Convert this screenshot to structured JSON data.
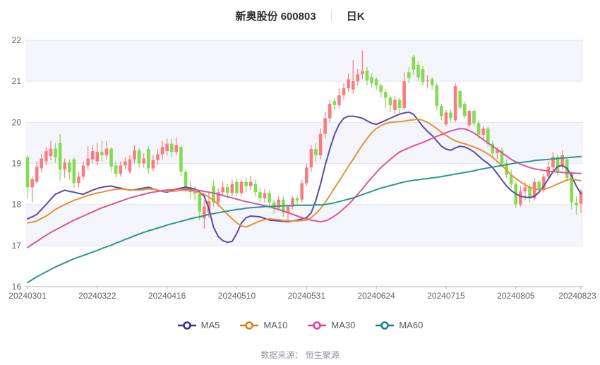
{
  "header": {
    "title": "新奥股份 600803",
    "separator": "｜",
    "subtitle": "日K"
  },
  "footer": {
    "source_label": "数据来源： 恒生聚源"
  },
  "legend": [
    {
      "label": "MA5",
      "color": "#3b2b91"
    },
    {
      "label": "MA10",
      "color": "#e07a1a"
    },
    {
      "label": "MA30",
      "color": "#dd3f9e"
    },
    {
      "label": "MA60",
      "color": "#14808e"
    }
  ],
  "chart_data": {
    "type": "candlestick",
    "title": "新奥股份 600803 日K",
    "ylim": [
      16,
      22
    ],
    "y_ticks": [
      16,
      17,
      18,
      19,
      20,
      21,
      22
    ],
    "x_tick_labels": [
      "20240301",
      "20240322",
      "20240416",
      "20240510",
      "20240531",
      "20240624",
      "20240715",
      "20240805",
      "20240823"
    ],
    "x_tick_indices": [
      0,
      15,
      30,
      45,
      60,
      75,
      90,
      105,
      119
    ],
    "grid": true,
    "legend_position": "bottom",
    "up_color": "#f87e7e",
    "down_color": "#83db52",
    "band_color": "#f3f5fa",
    "grid_color": "#e3e8f2",
    "axis_color": "#b0b0b0",
    "tick_label_color": "#666666",
    "candles_ohlc": [
      [
        19.15,
        19.2,
        18.15,
        18.42
      ],
      [
        18.42,
        18.68,
        18.05,
        18.62
      ],
      [
        18.55,
        19.06,
        18.5,
        18.92
      ],
      [
        18.88,
        19.24,
        18.8,
        19.12
      ],
      [
        19.05,
        19.4,
        18.95,
        19.3
      ],
      [
        19.18,
        19.55,
        19.08,
        19.36
      ],
      [
        19.36,
        19.5,
        19.02,
        19.15
      ],
      [
        19.5,
        19.72,
        18.58,
        18.85
      ],
      [
        18.85,
        19.12,
        18.65,
        19.02
      ],
      [
        19.02,
        19.1,
        18.6,
        18.78
      ],
      [
        19.1,
        19.15,
        18.4,
        18.52
      ],
      [
        18.52,
        18.8,
        18.42,
        18.68
      ],
      [
        18.68,
        19.05,
        18.6,
        18.95
      ],
      [
        18.95,
        19.42,
        18.85,
        19.12
      ],
      [
        19.1,
        19.45,
        19.0,
        19.3
      ],
      [
        19.05,
        19.5,
        18.95,
        19.28
      ],
      [
        19.28,
        19.55,
        19.05,
        19.2
      ],
      [
        19.2,
        19.55,
        19.1,
        19.36
      ],
      [
        19.36,
        19.4,
        18.8,
        18.92
      ],
      [
        18.95,
        19.05,
        18.65,
        18.75
      ],
      [
        18.75,
        19.05,
        18.68,
        18.95
      ],
      [
        18.95,
        19.15,
        18.85,
        19.05
      ],
      [
        18.8,
        19.2,
        18.75,
        19.1
      ],
      [
        19.1,
        19.45,
        19.0,
        19.32
      ],
      [
        19.32,
        19.38,
        18.9,
        19.0
      ],
      [
        19.0,
        19.25,
        18.9,
        19.12
      ],
      [
        19.35,
        19.42,
        18.75,
        18.88
      ],
      [
        18.88,
        19.2,
        18.8,
        19.08
      ],
      [
        19.08,
        19.35,
        18.95,
        19.22
      ],
      [
        19.22,
        19.55,
        19.1,
        19.4
      ],
      [
        19.3,
        19.6,
        19.2,
        19.48
      ],
      [
        19.48,
        19.6,
        19.15,
        19.28
      ],
      [
        19.28,
        19.62,
        19.2,
        19.45
      ],
      [
        19.4,
        19.45,
        18.7,
        18.8
      ],
      [
        18.79,
        18.85,
        18.3,
        18.42
      ],
      [
        18.42,
        18.55,
        18.15,
        18.3
      ],
      [
        18.31,
        18.45,
        18.1,
        18.26
      ],
      [
        18.26,
        18.28,
        17.62,
        17.83
      ],
      [
        17.66,
        18.1,
        17.41,
        17.95
      ],
      [
        17.8,
        18.3,
        17.68,
        18.08
      ],
      [
        18.45,
        18.6,
        17.95,
        18.05
      ],
      [
        18.05,
        18.4,
        17.95,
        18.3
      ],
      [
        18.3,
        18.55,
        18.2,
        18.42
      ],
      [
        18.42,
        18.5,
        18.15,
        18.28
      ],
      [
        18.28,
        18.6,
        18.2,
        18.5
      ],
      [
        18.55,
        18.62,
        18.2,
        18.28
      ],
      [
        18.28,
        18.6,
        18.2,
        18.55
      ],
      [
        18.55,
        18.65,
        18.3,
        18.45
      ],
      [
        18.45,
        18.7,
        18.35,
        18.55
      ],
      [
        18.5,
        18.6,
        18.2,
        18.3
      ],
      [
        18.3,
        18.4,
        18.05,
        18.15
      ],
      [
        18.15,
        18.38,
        18.05,
        18.28
      ],
      [
        18.28,
        18.35,
        17.9,
        18.05
      ],
      [
        18.05,
        18.12,
        17.78,
        17.92
      ],
      [
        17.92,
        18.2,
        17.85,
        18.12
      ],
      [
        18.12,
        18.2,
        17.7,
        17.8
      ],
      [
        17.8,
        17.98,
        17.62,
        17.95
      ],
      [
        17.95,
        18.2,
        17.88,
        18.15
      ],
      [
        18.15,
        18.22,
        18.0,
        18.1
      ],
      [
        18.12,
        18.6,
        18.05,
        18.52
      ],
      [
        18.52,
        19.0,
        18.45,
        18.9
      ],
      [
        18.9,
        19.45,
        18.8,
        19.35
      ],
      [
        19.35,
        19.5,
        19.05,
        19.2
      ],
      [
        19.2,
        19.85,
        19.1,
        19.72
      ],
      [
        19.72,
        20.25,
        19.6,
        20.1
      ],
      [
        20.1,
        20.55,
        20.0,
        20.45
      ],
      [
        20.52,
        20.6,
        20.3,
        20.42
      ],
      [
        20.42,
        20.83,
        20.35,
        20.66
      ],
      [
        20.66,
        20.95,
        20.55,
        20.83
      ],
      [
        20.83,
        21.19,
        20.75,
        21.05
      ],
      [
        20.8,
        21.52,
        20.7,
        21.0
      ],
      [
        21.0,
        21.3,
        20.9,
        21.17
      ],
      [
        21.17,
        21.75,
        21.05,
        21.25
      ],
      [
        21.26,
        21.35,
        20.9,
        21.02
      ],
      [
        21.1,
        21.2,
        20.85,
        20.95
      ],
      [
        21.05,
        21.1,
        20.8,
        20.9
      ],
      [
        20.9,
        20.95,
        20.6,
        20.74
      ],
      [
        20.74,
        20.8,
        20.35,
        20.6
      ],
      [
        20.6,
        20.65,
        20.25,
        20.42
      ],
      [
        20.3,
        20.65,
        20.2,
        20.55
      ],
      [
        20.55,
        20.6,
        20.2,
        20.35
      ],
      [
        20.35,
        21.22,
        20.3,
        21.0
      ],
      [
        21.22,
        21.35,
        20.95,
        21.08
      ],
      [
        21.6,
        21.64,
        21.15,
        21.28
      ],
      [
        21.4,
        21.5,
        21.0,
        21.1
      ],
      [
        21.3,
        21.38,
        20.9,
        20.98
      ],
      [
        21.0,
        21.15,
        20.85,
        21.02
      ],
      [
        21.05,
        21.1,
        20.8,
        20.9
      ],
      [
        20.9,
        20.95,
        20.3,
        20.4
      ],
      [
        20.4,
        20.45,
        20.05,
        20.15
      ],
      [
        19.95,
        20.3,
        19.9,
        20.24
      ],
      [
        20.24,
        20.32,
        20.0,
        20.1
      ],
      [
        20.05,
        20.95,
        20.0,
        20.88
      ],
      [
        20.76,
        20.8,
        20.3,
        20.36
      ],
      [
        20.45,
        20.5,
        20.1,
        20.16
      ],
      [
        19.93,
        20.32,
        19.88,
        20.28
      ],
      [
        20.28,
        20.32,
        19.9,
        19.98
      ],
      [
        19.98,
        20.05,
        19.6,
        19.7
      ],
      [
        19.7,
        19.92,
        19.6,
        19.85
      ],
      [
        19.85,
        19.9,
        19.4,
        19.48
      ],
      [
        19.48,
        19.55,
        19.15,
        19.25
      ],
      [
        19.25,
        19.4,
        19.1,
        19.32
      ],
      [
        19.32,
        19.38,
        18.9,
        19.0
      ],
      [
        19.0,
        19.1,
        18.65,
        18.72
      ],
      [
        18.72,
        18.85,
        18.4,
        18.5
      ],
      [
        18.5,
        18.55,
        17.91,
        18.0
      ],
      [
        18.0,
        18.45,
        17.95,
        18.32
      ],
      [
        18.32,
        18.55,
        18.1,
        18.42
      ],
      [
        18.42,
        18.5,
        18.05,
        18.15
      ],
      [
        18.15,
        18.65,
        18.1,
        18.55
      ],
      [
        18.55,
        18.6,
        18.25,
        18.35
      ],
      [
        18.35,
        18.75,
        18.3,
        18.68
      ],
      [
        18.68,
        19.05,
        18.6,
        18.92
      ],
      [
        18.9,
        19.28,
        18.8,
        19.16
      ],
      [
        19.16,
        19.22,
        18.7,
        18.81
      ],
      [
        18.95,
        19.32,
        18.85,
        19.2
      ],
      [
        19.1,
        19.15,
        18.55,
        18.65
      ],
      [
        18.76,
        18.8,
        17.88,
        18.05
      ],
      [
        18.05,
        18.2,
        17.75,
        17.98
      ],
      [
        18.02,
        18.38,
        17.8,
        18.32
      ]
    ],
    "series": [
      {
        "name": "MA5",
        "color": "#5b4aa5",
        "values": [
          17.65,
          17.7,
          17.76,
          17.88,
          18.0,
          18.13,
          18.25,
          18.3,
          18.35,
          18.32,
          18.3,
          18.27,
          18.25,
          18.3,
          18.35,
          18.39,
          18.42,
          18.44,
          18.45,
          18.42,
          18.4,
          18.37,
          18.35,
          18.36,
          18.38,
          18.4,
          18.42,
          18.38,
          18.35,
          18.32,
          18.3,
          18.34,
          18.38,
          18.4,
          18.42,
          18.4,
          18.38,
          18.3,
          18.2,
          17.9,
          17.45,
          17.22,
          17.12,
          17.08,
          17.1,
          17.3,
          17.55,
          17.68,
          17.72,
          17.71,
          17.7,
          17.66,
          17.62,
          17.61,
          17.6,
          17.59,
          17.58,
          17.6,
          17.62,
          17.65,
          17.68,
          17.8,
          18.1,
          18.5,
          18.95,
          19.35,
          19.7,
          19.95,
          20.1,
          20.15,
          20.15,
          20.13,
          20.1,
          20.04,
          19.98,
          19.95,
          20.0,
          20.05,
          20.1,
          20.15,
          20.2,
          20.23,
          20.25,
          20.2,
          20.05,
          19.9,
          19.78,
          19.68,
          19.55,
          19.42,
          19.35,
          19.32,
          19.38,
          19.42,
          19.4,
          19.35,
          19.28,
          19.18,
          19.08,
          19.0,
          18.9,
          18.75,
          18.6,
          18.45,
          18.34,
          18.26,
          18.2,
          18.18,
          18.17,
          18.2,
          18.3,
          18.45,
          18.62,
          18.8,
          18.93,
          18.95,
          18.88,
          18.7,
          18.45,
          18.26
        ]
      },
      {
        "name": "MA10",
        "color": "#e69138",
        "values": [
          17.55,
          17.57,
          17.6,
          17.66,
          17.72,
          17.8,
          17.88,
          17.94,
          18.0,
          18.05,
          18.1,
          18.14,
          18.18,
          18.22,
          18.25,
          18.28,
          18.3,
          18.33,
          18.35,
          18.37,
          18.38,
          18.37,
          18.36,
          18.35,
          18.35,
          18.36,
          18.38,
          18.37,
          18.35,
          18.33,
          18.32,
          18.32,
          18.33,
          18.34,
          18.35,
          18.34,
          18.32,
          18.29,
          18.25,
          18.18,
          18.1,
          18.0,
          17.88,
          17.76,
          17.65,
          17.55,
          17.48,
          17.45,
          17.5,
          17.55,
          17.6,
          17.63,
          17.65,
          17.64,
          17.63,
          17.61,
          17.6,
          17.6,
          17.6,
          17.61,
          17.62,
          17.68,
          17.78,
          17.9,
          18.05,
          18.22,
          18.4,
          18.57,
          18.75,
          18.93,
          19.1,
          19.28,
          19.45,
          19.6,
          19.75,
          19.85,
          19.92,
          19.97,
          20.0,
          20.01,
          20.02,
          20.03,
          20.05,
          20.06,
          20.08,
          20.05,
          20.0,
          19.93,
          19.85,
          19.76,
          19.68,
          19.61,
          19.55,
          19.51,
          19.48,
          19.44,
          19.4,
          19.35,
          19.3,
          19.23,
          19.15,
          19.05,
          18.95,
          18.84,
          18.72,
          18.63,
          18.55,
          18.48,
          18.42,
          18.38,
          18.36,
          18.37,
          18.4,
          18.45,
          18.5,
          18.55,
          18.6,
          18.62,
          18.6,
          18.58
        ]
      },
      {
        "name": "MA30",
        "color": "#d8569b",
        "values": [
          16.95,
          17.03,
          17.1,
          17.18,
          17.25,
          17.32,
          17.38,
          17.44,
          17.5,
          17.56,
          17.62,
          17.67,
          17.72,
          17.77,
          17.82,
          17.87,
          17.92,
          17.96,
          18.0,
          18.04,
          18.08,
          18.12,
          18.16,
          18.19,
          18.22,
          18.25,
          18.28,
          18.3,
          18.32,
          18.34,
          18.35,
          18.36,
          18.37,
          18.38,
          18.38,
          18.37,
          18.36,
          18.34,
          18.32,
          18.3,
          18.28,
          18.25,
          18.22,
          18.19,
          18.16,
          18.13,
          18.1,
          18.07,
          18.05,
          18.02,
          18.0,
          17.97,
          17.95,
          17.91,
          17.88,
          17.84,
          17.8,
          17.76,
          17.72,
          17.68,
          17.65,
          17.62,
          17.6,
          17.58,
          17.6,
          17.65,
          17.72,
          17.8,
          17.9,
          18.0,
          18.12,
          18.25,
          18.38,
          18.52,
          18.65,
          18.78,
          18.9,
          19.0,
          19.1,
          19.19,
          19.28,
          19.33,
          19.38,
          19.43,
          19.47,
          19.51,
          19.56,
          19.61,
          19.66,
          19.7,
          19.75,
          19.79,
          19.82,
          19.85,
          19.84,
          19.8,
          19.74,
          19.66,
          19.58,
          19.5,
          19.42,
          19.34,
          19.26,
          19.18,
          19.1,
          19.04,
          18.98,
          18.94,
          18.9,
          18.87,
          18.85,
          18.83,
          18.81,
          18.8,
          18.79,
          18.78,
          18.77,
          18.77,
          18.76,
          18.76
        ]
      },
      {
        "name": "MA60",
        "color": "#2e958f",
        "values": [
          16.1,
          16.17,
          16.24,
          16.3,
          16.36,
          16.42,
          16.48,
          16.53,
          16.58,
          16.63,
          16.68,
          16.72,
          16.76,
          16.8,
          16.84,
          16.88,
          16.93,
          16.97,
          17.01,
          17.06,
          17.1,
          17.15,
          17.19,
          17.24,
          17.28,
          17.32,
          17.36,
          17.39,
          17.43,
          17.46,
          17.5,
          17.53,
          17.56,
          17.59,
          17.62,
          17.65,
          17.68,
          17.7,
          17.73,
          17.76,
          17.78,
          17.8,
          17.82,
          17.84,
          17.86,
          17.88,
          17.89,
          17.91,
          17.92,
          17.93,
          17.94,
          17.95,
          17.95,
          17.96,
          17.96,
          17.97,
          17.97,
          17.97,
          17.98,
          17.98,
          17.98,
          17.98,
          17.99,
          17.99,
          18.0,
          18.02,
          18.04,
          18.07,
          18.1,
          18.13,
          18.16,
          18.2,
          18.24,
          18.28,
          18.32,
          18.36,
          18.4,
          18.43,
          18.46,
          18.49,
          18.52,
          18.55,
          18.57,
          18.59,
          18.6,
          18.62,
          18.63,
          18.65,
          18.66,
          18.68,
          18.7,
          18.72,
          18.74,
          18.76,
          18.78,
          18.8,
          18.82,
          18.85,
          18.87,
          18.89,
          18.91,
          18.93,
          18.95,
          18.97,
          18.99,
          19.01,
          19.02,
          19.04,
          19.05,
          19.07,
          19.08,
          19.09,
          19.1,
          19.11,
          19.12,
          19.13,
          19.14,
          19.15,
          19.16,
          19.17
        ]
      }
    ]
  }
}
